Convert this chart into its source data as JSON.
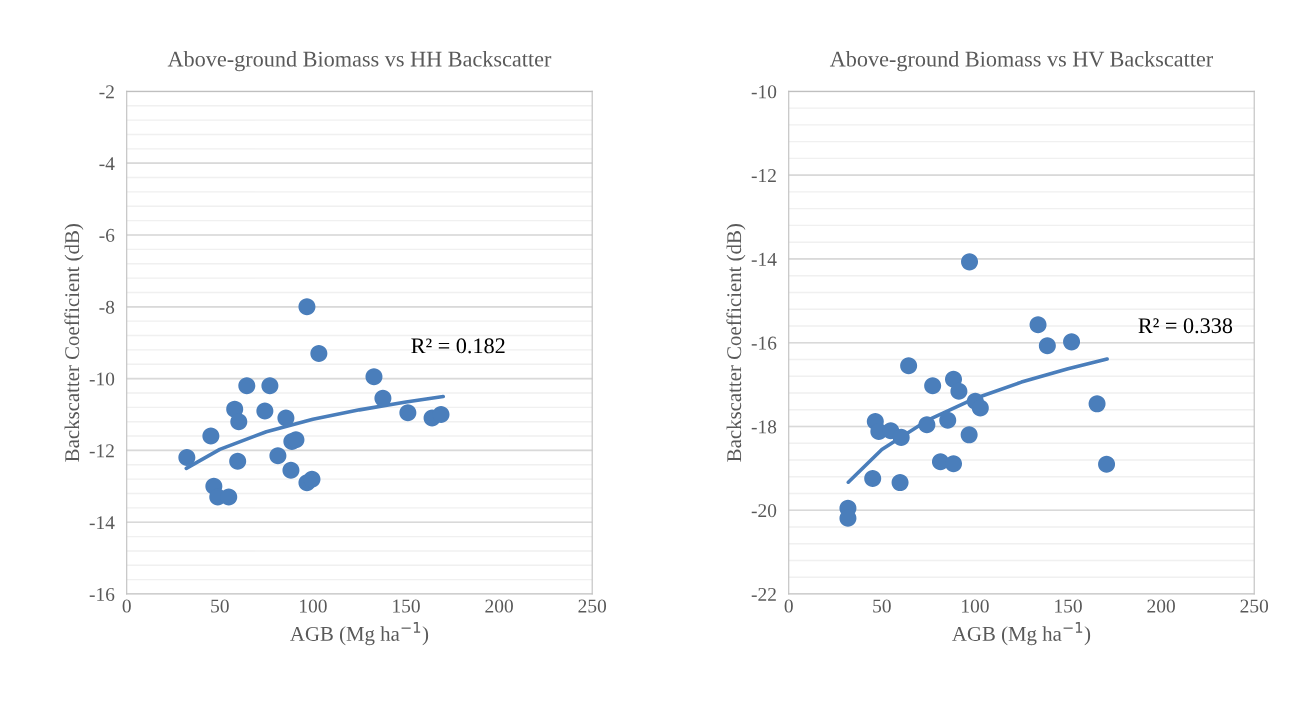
{
  "chart_data": [
    {
      "type": "scatter",
      "title": "Above-ground Biomass vs HH Backscatter",
      "xlabel": "AGB (Mg ha$^{−1}$)",
      "ylabel": "Backscatter Coefficient (dB)",
      "xlim": [
        0,
        250
      ],
      "xticks": [
        0,
        50,
        100,
        150,
        200,
        250
      ],
      "ylim": [
        -16,
        -2
      ],
      "yticks": [
        -16,
        -14,
        -12,
        -10,
        -8,
        -6,
        -4,
        -2
      ],
      "grid": "y",
      "legend": false,
      "series": [
        {
          "marker": "circle",
          "color": "#4a7ebb",
          "x": [
            32.3,
            45.2,
            46.8,
            48.9,
            54.8,
            58,
            60.2,
            59.6,
            64.5,
            74.2,
            76.9,
            85.5,
            81.2,
            88.2,
            88.7,
            90.9,
            96.8,
            96.8,
            99.5,
            103.2,
            132.8,
            137.6,
            151,
            164,
            168.8
          ],
          "values": [
            -12.2,
            -11.6,
            -13.0,
            -13.3,
            -13.3,
            -10.85,
            -11.2,
            -12.3,
            -10.2,
            -10.9,
            -10.2,
            -11.1,
            -12.15,
            -12.55,
            -11.75,
            -11.7,
            -8.0,
            -12.9,
            -12.8,
            -9.3,
            -9.95,
            -10.55,
            -10.95,
            -11.1,
            -11.0
          ]
        },
        {
          "type": "line",
          "color": "#4a7ebb",
          "x": [
            32,
            50,
            75,
            100,
            125,
            150,
            170
          ],
          "values": [
            -12.5,
            -11.97,
            -11.48,
            -11.13,
            -10.87,
            -10.65,
            -10.5
          ]
        }
      ],
      "annotations": [
        "R² = 0.182"
      ]
    },
    {
      "type": "scatter",
      "title": "Above-ground Biomass vs HV Backscatter",
      "xlabel": "AGB (Mg ha$^{−1}$)",
      "ylabel": "Backscatter Coefficient (dB)",
      "xlim": [
        0,
        250
      ],
      "xticks": [
        0,
        50,
        100,
        150,
        200,
        250
      ],
      "ylim": [
        -22,
        -10
      ],
      "yticks": [
        -22,
        -20,
        -18,
        -16,
        -14,
        -12,
        -10
      ],
      "grid": "y",
      "legend": false,
      "series": [
        {
          "marker": "circle",
          "color": "#4a7ebb",
          "x": [
            31.8,
            31.8,
            45.1,
            46.5,
            48.4,
            54.8,
            60.4,
            59.8,
            64.4,
            74.2,
            77.3,
            81.5,
            85.4,
            88.5,
            88.5,
            91.4,
            96.9,
            97.1,
            100.2,
            102.9,
            133.9,
            138.9,
            151.9,
            165.6,
            170.7
          ],
          "values": [
            -19.95,
            -20.19,
            -19.24,
            -17.88,
            -18.12,
            -18.1,
            -18.26,
            -19.34,
            -16.55,
            -17.96,
            -17.03,
            -18.84,
            -17.85,
            -16.87,
            -18.89,
            -17.16,
            -18.2,
            -14.07,
            -17.4,
            -17.56,
            -15.57,
            -16.07,
            -15.98,
            -17.46,
            -18.9
          ]
        },
        {
          "type": "line",
          "color": "#4a7ebb",
          "x": [
            32,
            50,
            75,
            100,
            125,
            150,
            171
          ],
          "values": [
            -19.33,
            -18.55,
            -17.84,
            -17.33,
            -16.94,
            -16.62,
            -16.39
          ]
        }
      ],
      "annotations": [
        "R² = 0.338"
      ]
    }
  ]
}
